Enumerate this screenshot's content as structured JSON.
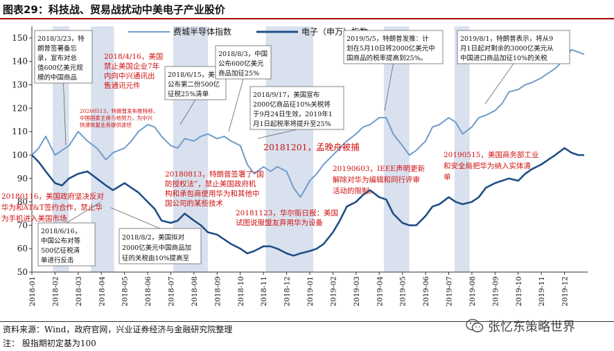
{
  "figure_title": "图表29：科技战、贸易战扰动中美电子产业股价",
  "source_text": "资料来源：Wind，政府官网，兴业证券经济与金融研究院整理",
  "note_text": "注：  股指期初定基为100",
  "watermark_text": "张忆东策略世界",
  "watermark_icon": "wechat-icon",
  "colors": {
    "sox": "#6f9ccb",
    "sw": "#1f4e86",
    "shade": "#d9e1ee",
    "red": "#d01010",
    "rule": "#a00000"
  },
  "chart_data": {
    "type": "line",
    "title": "图表29：科技战、贸易战扰动中美电子产业股价",
    "ylim": [
      50,
      155
    ],
    "yticks": [
      50,
      60,
      70,
      80,
      90,
      100,
      110,
      120,
      130,
      140,
      150
    ],
    "categories": [
      "2018-01",
      "2018-02",
      "2018-03",
      "2018-04",
      "2018-05",
      "2018-06",
      "2018-07",
      "2018-08",
      "2018-09",
      "2018-10",
      "2018-11",
      "2018-12",
      "2019-01",
      "2019-02",
      "2019-03",
      "2019-04",
      "2019-05",
      "2019-06",
      "2019-07",
      "2019-08",
      "2019-09",
      "2019-10",
      "2019-11",
      "2019-12"
    ],
    "legend": "top-center",
    "series": [
      {
        "name": "费城半导体指数",
        "color": "#6f9ccb",
        "points": [
          [
            0,
            100
          ],
          [
            0.3,
            103
          ],
          [
            0.6,
            108
          ],
          [
            1.0,
            100
          ],
          [
            1.3,
            102
          ],
          [
            1.6,
            104
          ],
          [
            2.0,
            110
          ],
          [
            2.4,
            106
          ],
          [
            2.8,
            103
          ],
          [
            3.2,
            98
          ],
          [
            3.5,
            101
          ],
          [
            4.0,
            103
          ],
          [
            4.3,
            106
          ],
          [
            4.6,
            110
          ],
          [
            5.0,
            113
          ],
          [
            5.3,
            112
          ],
          [
            5.6,
            108
          ],
          [
            6.0,
            104
          ],
          [
            6.3,
            103
          ],
          [
            6.6,
            107
          ],
          [
            7.0,
            106
          ],
          [
            7.3,
            108
          ],
          [
            7.6,
            109
          ],
          [
            8.0,
            107
          ],
          [
            8.3,
            108
          ],
          [
            8.6,
            106
          ],
          [
            9.0,
            104
          ],
          [
            9.3,
            96
          ],
          [
            9.6,
            92
          ],
          [
            10.0,
            95
          ],
          [
            10.3,
            93
          ],
          [
            10.6,
            95
          ],
          [
            11.0,
            93
          ],
          [
            11.3,
            86
          ],
          [
            11.6,
            82
          ],
          [
            12.0,
            89
          ],
          [
            12.3,
            92
          ],
          [
            12.6,
            96
          ],
          [
            13.0,
            100
          ],
          [
            13.3,
            103
          ],
          [
            13.6,
            106
          ],
          [
            14.0,
            109
          ],
          [
            14.3,
            112
          ],
          [
            14.6,
            113
          ],
          [
            15.0,
            116
          ],
          [
            15.3,
            116
          ],
          [
            15.6,
            109
          ],
          [
            16.0,
            104
          ],
          [
            16.3,
            100
          ],
          [
            16.6,
            102
          ],
          [
            17.0,
            106
          ],
          [
            17.3,
            112
          ],
          [
            17.6,
            113
          ],
          [
            18.0,
            116
          ],
          [
            18.3,
            114
          ],
          [
            18.6,
            109
          ],
          [
            19.0,
            112
          ],
          [
            19.3,
            116
          ],
          [
            19.6,
            117
          ],
          [
            20.0,
            119
          ],
          [
            20.3,
            122
          ],
          [
            20.6,
            127
          ],
          [
            21.0,
            128
          ],
          [
            21.3,
            130
          ],
          [
            21.6,
            131
          ],
          [
            22.0,
            133
          ],
          [
            22.3,
            135
          ],
          [
            22.6,
            137
          ],
          [
            23.0,
            141
          ],
          [
            23.3,
            145
          ],
          [
            23.6,
            144
          ],
          [
            23.85,
            143
          ]
        ]
      },
      {
        "name": "电子（申万）指数",
        "color": "#1f4e86",
        "points": [
          [
            0,
            100
          ],
          [
            0.3,
            97
          ],
          [
            0.6,
            93
          ],
          [
            1.0,
            88
          ],
          [
            1.3,
            87
          ],
          [
            1.6,
            90
          ],
          [
            2.0,
            92
          ],
          [
            2.4,
            93
          ],
          [
            2.8,
            90
          ],
          [
            3.2,
            87
          ],
          [
            3.5,
            85
          ],
          [
            4.0,
            88
          ],
          [
            4.3,
            86
          ],
          [
            4.6,
            84
          ],
          [
            5.0,
            80
          ],
          [
            5.3,
            77
          ],
          [
            5.6,
            72
          ],
          [
            6.0,
            71
          ],
          [
            6.3,
            72
          ],
          [
            6.6,
            75
          ],
          [
            7.0,
            72
          ],
          [
            7.3,
            70
          ],
          [
            7.6,
            67
          ],
          [
            8.0,
            66
          ],
          [
            8.3,
            64
          ],
          [
            8.6,
            62
          ],
          [
            9.0,
            60
          ],
          [
            9.3,
            58
          ],
          [
            9.6,
            59
          ],
          [
            10.0,
            61
          ],
          [
            10.3,
            61
          ],
          [
            10.6,
            60
          ],
          [
            11.0,
            58
          ],
          [
            11.3,
            57
          ],
          [
            11.6,
            58
          ],
          [
            12.0,
            59
          ],
          [
            12.3,
            60
          ],
          [
            12.6,
            62
          ],
          [
            13.0,
            67
          ],
          [
            13.3,
            72
          ],
          [
            13.6,
            78
          ],
          [
            14.0,
            80
          ],
          [
            14.3,
            83
          ],
          [
            14.6,
            85
          ],
          [
            15.0,
            82
          ],
          [
            15.3,
            81
          ],
          [
            15.6,
            75
          ],
          [
            16.0,
            71
          ],
          [
            16.3,
            70
          ],
          [
            16.6,
            70
          ],
          [
            17.0,
            74
          ],
          [
            17.3,
            78
          ],
          [
            17.6,
            79
          ],
          [
            18.0,
            82
          ],
          [
            18.3,
            80
          ],
          [
            18.6,
            79
          ],
          [
            19.0,
            80
          ],
          [
            19.3,
            82
          ],
          [
            19.6,
            86
          ],
          [
            20.0,
            88
          ],
          [
            20.3,
            89
          ],
          [
            20.6,
            90
          ],
          [
            21.0,
            89
          ],
          [
            21.3,
            92
          ],
          [
            21.6,
            94
          ],
          [
            22.0,
            96
          ],
          [
            22.3,
            98
          ],
          [
            22.6,
            100
          ],
          [
            23.0,
            103
          ],
          [
            23.3,
            101
          ],
          [
            23.6,
            100
          ],
          [
            23.85,
            100
          ]
        ]
      }
    ],
    "shaded_ranges": [
      [
        0.9,
        1.6
      ],
      [
        2.55,
        3.55
      ],
      [
        6.1,
        7.6
      ],
      [
        10.1,
        12.15
      ],
      [
        15.2,
        16.3
      ],
      [
        18.25,
        18.9
      ]
    ],
    "annotations": [
      {
        "text": [
          "2018/3/23，特",
          "朗普签署备忘",
          "录，宣布对总",
          "值600亿美元规",
          "模的中国商品"
        ],
        "style": "box",
        "color": "black"
      },
      {
        "text": [
          "2018/4/16，美国",
          "禁止美国企业7年",
          "内向中兴通讯出",
          "售通讯元件"
        ],
        "style": "plain",
        "color": "red"
      },
      {
        "text": [
          "20200513，特朗普发布推特称，",
          "中国国家主席与他努力，为中兴",
          "快速恢复业务提供途径"
        ],
        "style": "plain",
        "color": "red",
        "small": true
      },
      {
        "text": [
          "2018/6/15，美国",
          "公布第二份500亿",
          "征税25%清单"
        ],
        "style": "box",
        "color": "black"
      },
      {
        "text": [
          "2018/8/3，中国",
          "公布600亿美元",
          "商品加征25%"
        ],
        "style": "box",
        "color": "black"
      },
      {
        "text": [
          "2018/9/17，美国宣布",
          "2000亿商品征10%关税将",
          "于9月24日生效，2019年1",
          "月1日起税率将提升至25%"
        ],
        "style": "box",
        "color": "black"
      },
      {
        "text": [
          "20181201，孟晚舟被捕"
        ],
        "style": "plain",
        "color": "red",
        "big": true
      },
      {
        "text": [
          "2019/5/5，特朗普发推：计",
          "划在5月10日将2000亿美元中",
          "国商品的税率提高到25%。"
        ],
        "style": "box",
        "color": "black"
      },
      {
        "text": [
          "2019/8/1，特朗普表示，将从9",
          "月1日起对剩余的3000亿美元从",
          "中国进口商品加征10%的关税"
        ],
        "style": "box",
        "color": "black"
      },
      {
        "text": [
          "20180116，美国政府坚决反对",
          "华为和AT&T签约合作，禁止华",
          "为手机进入美国市场"
        ],
        "style": "plain",
        "color": "red"
      },
      {
        "text": [
          "20180813，特朗普签署了“国",
          "防授权法”，禁止美国政府机",
          "构和承包商使用华为和其他中",
          "国公司的某些技术"
        ],
        "style": "plain",
        "color": "red"
      },
      {
        "text": [
          "20181123，华尔街日报：美国",
          "试图说服盟友弃用华为设备"
        ],
        "style": "plain",
        "color": "red"
      },
      {
        "text": [
          "20190603，IEEE声明更新",
          "解除对华为编辑和同行评审",
          "活动的限制。"
        ],
        "style": "plain",
        "color": "red"
      },
      {
        "text": [
          "20190515，美国商务部工业",
          "和安全局把华为纳入实体清",
          "单"
        ],
        "style": "plain",
        "color": "red"
      },
      {
        "text": [
          "2018/6/16，",
          "中国公布对等",
          "500亿征税清",
          "单进行反击"
        ],
        "style": "box",
        "color": "black"
      },
      {
        "text": [
          "2018/8/2，美国拟对",
          "2000亿美元中国商品加",
          "征的关税由10%提高至"
        ],
        "style": "box",
        "color": "black"
      }
    ]
  }
}
